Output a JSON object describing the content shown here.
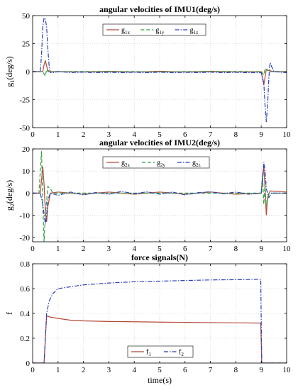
{
  "figure": {
    "xlabel": "time(s)",
    "xticks": [
      0,
      1,
      2,
      3,
      4,
      5,
      6,
      7,
      8,
      9,
      10
    ],
    "line_colors": {
      "s1": "#b5493a",
      "s2": "#2e9e3e",
      "s3": "#2b3fb8"
    }
  },
  "chart_data": [
    {
      "type": "line",
      "title": "angular velocities of IMU1(deg/s)",
      "ylabel": {
        "main": "g",
        "sub": "1",
        "rest": "(deg/s)"
      },
      "xlim": [
        0,
        10
      ],
      "ylim": [
        -50,
        50
      ],
      "yticks": [
        -50,
        -25,
        0,
        25,
        50
      ],
      "grid": "dotted",
      "legend_placement": "top-center",
      "series": [
        {
          "name": "g1x",
          "legend": {
            "main": "g",
            "sub": "1x"
          },
          "color": "#b5493a",
          "dash": "solid",
          "points": [
            [
              0,
              0
            ],
            [
              0.4,
              0
            ],
            [
              0.45,
              6
            ],
            [
              0.5,
              10
            ],
            [
              0.55,
              5
            ],
            [
              0.6,
              1
            ],
            [
              0.7,
              0
            ],
            [
              1,
              0
            ],
            [
              2,
              -0.3
            ],
            [
              3,
              0.3
            ],
            [
              4,
              -0.4
            ],
            [
              5,
              0.3
            ],
            [
              6,
              -0.3
            ],
            [
              7,
              0.3
            ],
            [
              8,
              -0.3
            ],
            [
              9,
              0
            ],
            [
              9.05,
              -6
            ],
            [
              9.1,
              -12
            ],
            [
              9.15,
              -5
            ],
            [
              9.2,
              2
            ],
            [
              9.3,
              1
            ],
            [
              9.5,
              0
            ],
            [
              10,
              0
            ]
          ]
        },
        {
          "name": "g1y",
          "legend": {
            "main": "g",
            "sub": "1y"
          },
          "color": "#2e9e3e",
          "dash": "dashed",
          "points": [
            [
              0,
              0
            ],
            [
              0.4,
              0
            ],
            [
              0.45,
              -2
            ],
            [
              0.5,
              -4
            ],
            [
              0.55,
              2
            ],
            [
              0.6,
              0
            ],
            [
              1,
              0
            ],
            [
              3,
              0.2
            ],
            [
              5,
              -0.2
            ],
            [
              7,
              0.2
            ],
            [
              9,
              0
            ],
            [
              9.1,
              -3
            ],
            [
              9.15,
              3
            ],
            [
              9.3,
              0
            ],
            [
              10,
              0
            ]
          ]
        },
        {
          "name": "g1z",
          "legend": {
            "main": "g",
            "sub": "1z"
          },
          "color": "#2b3fb8",
          "dash": "dashdot",
          "points": [
            [
              0,
              0
            ],
            [
              0.3,
              0
            ],
            [
              0.35,
              15
            ],
            [
              0.4,
              40
            ],
            [
              0.45,
              48
            ],
            [
              0.5,
              47
            ],
            [
              0.55,
              40
            ],
            [
              0.6,
              20
            ],
            [
              0.65,
              5
            ],
            [
              0.7,
              -1
            ],
            [
              0.8,
              -1
            ],
            [
              1,
              0
            ],
            [
              1.5,
              -0.8
            ],
            [
              2,
              -0.5
            ],
            [
              2.5,
              -1
            ],
            [
              3,
              -0.6
            ],
            [
              3.5,
              -1
            ],
            [
              4,
              -0.5
            ],
            [
              4.5,
              -1
            ],
            [
              5,
              -0.5
            ],
            [
              5.5,
              -1
            ],
            [
              6,
              -0.6
            ],
            [
              6.5,
              -1
            ],
            [
              7,
              -0.5
            ],
            [
              7.5,
              -1
            ],
            [
              8,
              -0.6
            ],
            [
              8.5,
              -1
            ],
            [
              9,
              -1
            ],
            [
              9.1,
              -10
            ],
            [
              9.15,
              -30
            ],
            [
              9.2,
              -45
            ],
            [
              9.25,
              -30
            ],
            [
              9.3,
              -5
            ],
            [
              9.35,
              8
            ],
            [
              9.4,
              5
            ],
            [
              9.5,
              0
            ],
            [
              10,
              -1
            ]
          ]
        }
      ]
    },
    {
      "type": "line",
      "title": "angular velocities of IMU2(deg/s)",
      "ylabel": {
        "main": "g",
        "sub": "2",
        "rest": "(deg/s)"
      },
      "xlim": [
        0,
        10
      ],
      "ylim": [
        -22,
        20
      ],
      "yticks": [
        -20,
        -10,
        0,
        10,
        20
      ],
      "grid": "dotted",
      "legend_placement": "top-center",
      "series": [
        {
          "name": "g2x",
          "legend": {
            "main": "g",
            "sub": "2x"
          },
          "color": "#b5493a",
          "dash": "solid",
          "points": [
            [
              0,
              0
            ],
            [
              0.3,
              0
            ],
            [
              0.35,
              6
            ],
            [
              0.4,
              12
            ],
            [
              0.45,
              4
            ],
            [
              0.5,
              -8
            ],
            [
              0.55,
              -13
            ],
            [
              0.6,
              -6
            ],
            [
              0.7,
              0
            ],
            [
              1,
              0.5
            ],
            [
              2,
              -0.5
            ],
            [
              3,
              0.5
            ],
            [
              4,
              -0.5
            ],
            [
              5,
              0.5
            ],
            [
              6,
              -0.5
            ],
            [
              7,
              0.5
            ],
            [
              8,
              -0.5
            ],
            [
              9,
              0
            ],
            [
              9.05,
              8
            ],
            [
              9.1,
              12
            ],
            [
              9.15,
              2
            ],
            [
              9.2,
              -10
            ],
            [
              9.25,
              -2
            ],
            [
              9.35,
              1
            ],
            [
              10,
              0.5
            ]
          ]
        },
        {
          "name": "g2y",
          "legend": {
            "main": "g",
            "sub": "2y"
          },
          "color": "#2e9e3e",
          "dash": "dashed",
          "points": [
            [
              0,
              0
            ],
            [
              0.25,
              0
            ],
            [
              0.3,
              10
            ],
            [
              0.35,
              19
            ],
            [
              0.4,
              -5
            ],
            [
              0.45,
              -22
            ],
            [
              0.5,
              -10
            ],
            [
              0.6,
              3
            ],
            [
              0.7,
              2
            ],
            [
              0.8,
              0
            ],
            [
              1,
              0
            ],
            [
              3,
              0
            ],
            [
              5,
              0
            ],
            [
              7,
              0
            ],
            [
              9,
              0
            ],
            [
              9.05,
              8
            ],
            [
              9.1,
              -5
            ],
            [
              9.15,
              4
            ],
            [
              9.2,
              -6
            ],
            [
              9.3,
              0
            ],
            [
              10,
              0
            ]
          ]
        },
        {
          "name": "g2z",
          "legend": {
            "main": "g",
            "sub": "2z"
          },
          "color": "#2b3fb8",
          "dash": "dashdot",
          "points": [
            [
              0,
              0
            ],
            [
              0.3,
              0
            ],
            [
              0.4,
              -5
            ],
            [
              0.5,
              -14
            ],
            [
              0.55,
              -10
            ],
            [
              0.6,
              -3
            ],
            [
              0.7,
              0
            ],
            [
              1,
              -1
            ],
            [
              1.5,
              0.5
            ],
            [
              2,
              -0.8
            ],
            [
              2.5,
              0.3
            ],
            [
              3,
              -0.5
            ],
            [
              3.5,
              0.8
            ],
            [
              4,
              -0.3
            ],
            [
              4.5,
              0.6
            ],
            [
              5,
              -0.5
            ],
            [
              5.5,
              0.5
            ],
            [
              6,
              -0.8
            ],
            [
              6.5,
              0.2
            ],
            [
              7,
              0.6
            ],
            [
              7.5,
              -0.3
            ],
            [
              8,
              0.5
            ],
            [
              8.5,
              -0.5
            ],
            [
              9,
              0
            ],
            [
              9.05,
              5
            ],
            [
              9.1,
              14
            ],
            [
              9.15,
              10
            ],
            [
              9.2,
              2
            ],
            [
              9.3,
              -2
            ],
            [
              9.4,
              0
            ],
            [
              10,
              0
            ]
          ]
        }
      ]
    },
    {
      "type": "line",
      "title": "force signals(N)",
      "ylabel": {
        "main": "f",
        "sub": "",
        "rest": ""
      },
      "xlim": [
        0,
        10
      ],
      "ylim": [
        0,
        0.8
      ],
      "yticks": [
        0,
        0.2,
        0.4,
        0.6,
        0.8
      ],
      "grid": "dotted",
      "legend_placement": "bottom-center",
      "series": [
        {
          "name": "f1",
          "legend": {
            "main": "f",
            "sub": "1"
          },
          "color": "#b5493a",
          "dash": "solid",
          "points": [
            [
              0,
              0
            ],
            [
              0.45,
              0
            ],
            [
              0.55,
              0.38
            ],
            [
              0.7,
              0.37
            ],
            [
              1,
              0.36
            ],
            [
              1.5,
              0.345
            ],
            [
              2,
              0.34
            ],
            [
              3,
              0.335
            ],
            [
              4,
              0.333
            ],
            [
              5,
              0.33
            ],
            [
              6,
              0.328
            ],
            [
              7,
              0.326
            ],
            [
              8,
              0.324
            ],
            [
              8.98,
              0.322
            ],
            [
              9.02,
              0
            ],
            [
              10,
              0
            ]
          ]
        },
        {
          "name": "f2",
          "legend": {
            "main": "f",
            "sub": "2"
          },
          "color": "#2b3fb8",
          "dash": "dashdot",
          "points": [
            [
              0,
              0
            ],
            [
              0.45,
              0
            ],
            [
              0.55,
              0.4
            ],
            [
              0.65,
              0.5
            ],
            [
              0.8,
              0.56
            ],
            [
              1,
              0.6
            ],
            [
              1.5,
              0.615
            ],
            [
              2,
              0.63
            ],
            [
              3,
              0.645
            ],
            [
              4,
              0.655
            ],
            [
              5,
              0.66
            ],
            [
              6,
              0.665
            ],
            [
              7,
              0.67
            ],
            [
              8,
              0.672
            ],
            [
              8.98,
              0.675
            ],
            [
              9.02,
              0
            ],
            [
              10,
              0
            ]
          ]
        }
      ]
    }
  ]
}
